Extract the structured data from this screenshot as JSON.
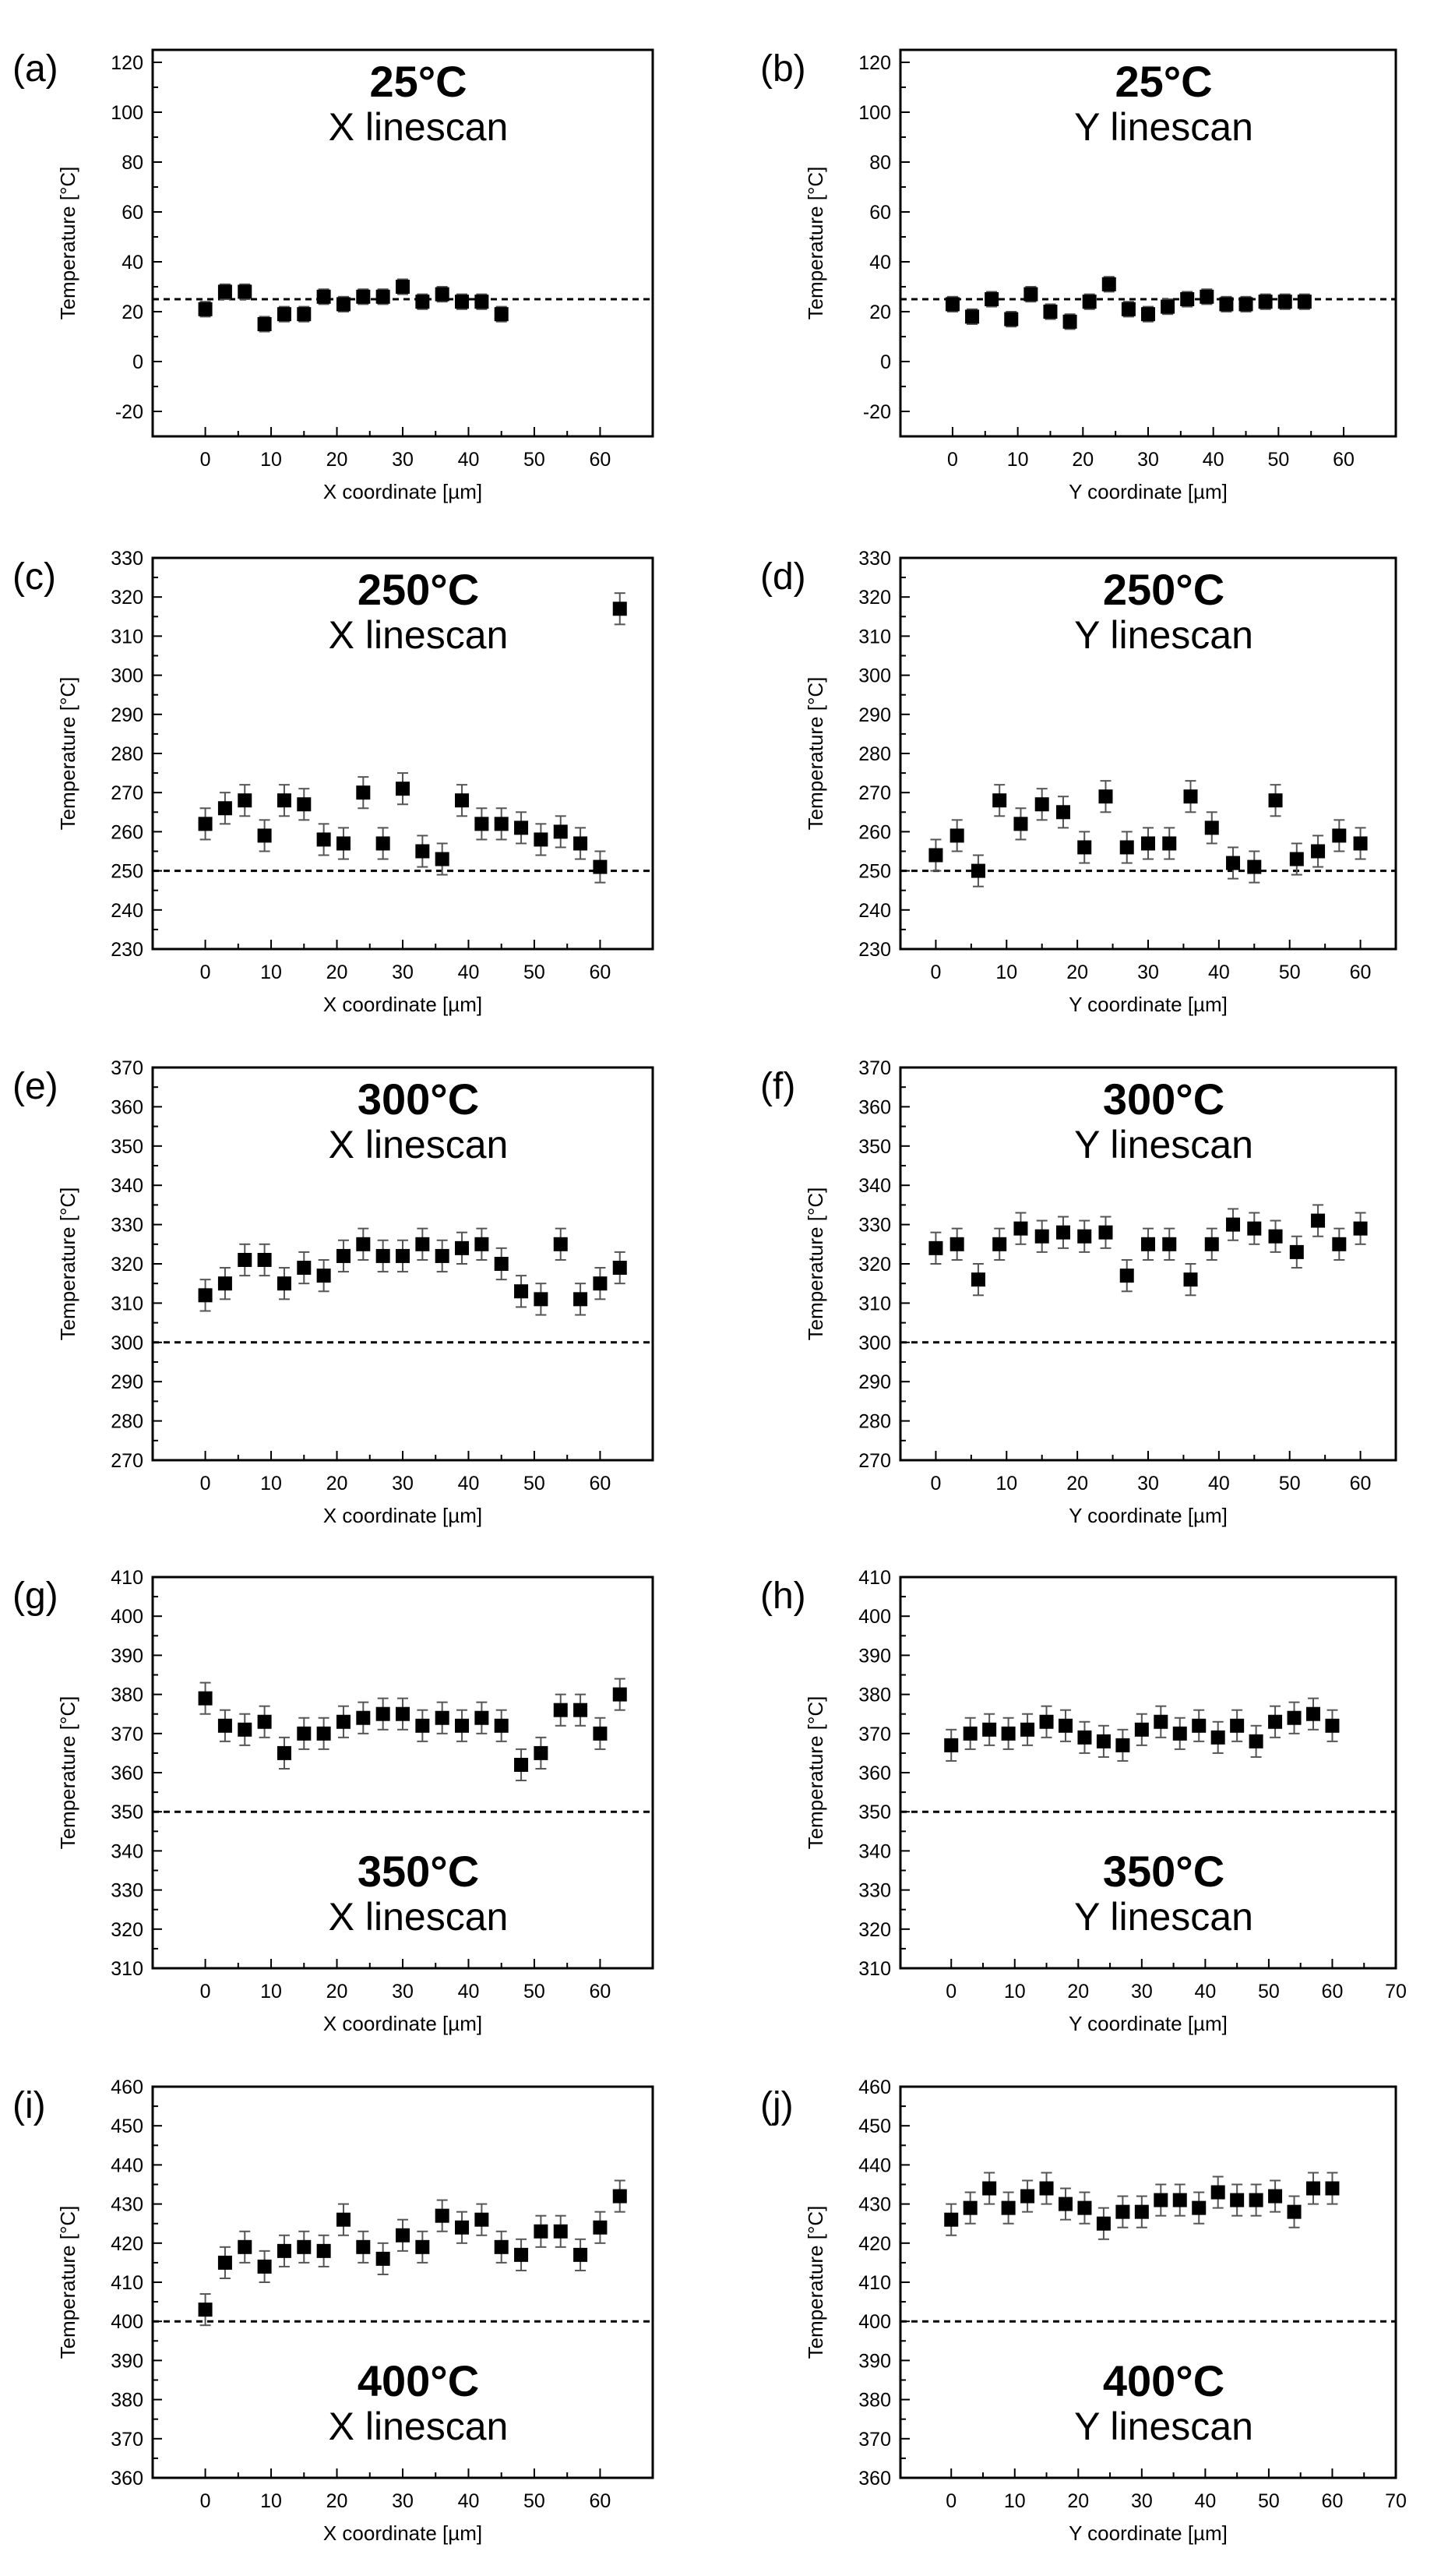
{
  "chart_data": [
    {
      "panel": "(a)",
      "type": "scatter",
      "title": "25°C",
      "subtitle": "X linescan",
      "xlabel": "X coordinate [µm]",
      "ylabel": "Temperature [°C]",
      "xlim": [
        -8,
        68
      ],
      "ylim": [
        -30,
        125
      ],
      "xticks": [
        0,
        10,
        20,
        30,
        40,
        50,
        60
      ],
      "yticks": [
        -20,
        0,
        20,
        40,
        60,
        80,
        100,
        120
      ],
      "reference": 25,
      "title_position": "top",
      "error": 3,
      "x": [
        0,
        3,
        6,
        9,
        12,
        15,
        18,
        21,
        24,
        27,
        30,
        33,
        36,
        39,
        42,
        45
      ],
      "y": [
        21,
        28,
        28,
        15,
        19,
        19,
        26,
        23,
        26,
        26,
        30,
        24,
        27,
        24,
        24,
        19
      ]
    },
    {
      "panel": "(b)",
      "type": "scatter",
      "title": "25°C",
      "subtitle": "Y linescan",
      "xlabel": "Y coordinate [µm]",
      "ylabel": "Temperature [°C]",
      "xlim": [
        -8,
        68
      ],
      "ylim": [
        -30,
        125
      ],
      "xticks": [
        0,
        10,
        20,
        30,
        40,
        50,
        60
      ],
      "yticks": [
        -20,
        0,
        20,
        40,
        60,
        80,
        100,
        120
      ],
      "reference": 25,
      "title_position": "top",
      "error": 3,
      "x": [
        0,
        3,
        6,
        9,
        12,
        15,
        18,
        21,
        24,
        27,
        30,
        33,
        36,
        39,
        42,
        45,
        48,
        51,
        54
      ],
      "y": [
        23,
        18,
        25,
        17,
        27,
        20,
        16,
        24,
        31,
        21,
        19,
        22,
        25,
        26,
        23,
        23,
        24,
        24,
        24
      ]
    },
    {
      "panel": "(c)",
      "type": "scatter",
      "title": "250°C",
      "subtitle": "X linescan",
      "xlabel": "X coordinate [µm]",
      "ylabel": "Temperature [°C]",
      "xlim": [
        -8,
        68
      ],
      "ylim": [
        230,
        330
      ],
      "xticks": [
        0,
        10,
        20,
        30,
        40,
        50,
        60
      ],
      "yticks": [
        230,
        240,
        250,
        260,
        270,
        280,
        290,
        300,
        310,
        320,
        330
      ],
      "reference": 250,
      "title_position": "top",
      "error": 4,
      "x": [
        0,
        3,
        6,
        9,
        12,
        15,
        18,
        21,
        24,
        27,
        30,
        33,
        36,
        39,
        42,
        45,
        48,
        51,
        54,
        57,
        60,
        63
      ],
      "y": [
        262,
        266,
        268,
        259,
        268,
        267,
        258,
        257,
        270,
        257,
        271,
        255,
        253,
        268,
        262,
        262,
        261,
        258,
        260,
        257,
        251,
        317
      ]
    },
    {
      "panel": "(d)",
      "type": "scatter",
      "title": "250°C",
      "subtitle": "Y linescan",
      "xlabel": "Y coordinate [µm]",
      "ylabel": "Temperature [°C]",
      "xlim": [
        -5,
        65
      ],
      "ylim": [
        230,
        330
      ],
      "xticks": [
        0,
        10,
        20,
        30,
        40,
        50,
        60
      ],
      "yticks": [
        230,
        240,
        250,
        260,
        270,
        280,
        290,
        300,
        310,
        320,
        330
      ],
      "reference": 250,
      "title_position": "top",
      "error": 4,
      "x": [
        0,
        3,
        6,
        9,
        12,
        15,
        18,
        21,
        24,
        27,
        30,
        33,
        36,
        39,
        42,
        45,
        48,
        51,
        54,
        57,
        60
      ],
      "y": [
        254,
        259,
        250,
        268,
        262,
        267,
        265,
        256,
        269,
        256,
        257,
        257,
        269,
        261,
        252,
        251,
        268,
        253,
        255,
        259,
        257
      ]
    },
    {
      "panel": "(e)",
      "type": "scatter",
      "title": "300°C",
      "subtitle": "X linescan",
      "xlabel": "X coordinate [µm]",
      "ylabel": "Temperature [°C]",
      "xlim": [
        -8,
        68
      ],
      "ylim": [
        270,
        370
      ],
      "xticks": [
        0,
        10,
        20,
        30,
        40,
        50,
        60
      ],
      "yticks": [
        270,
        280,
        290,
        300,
        310,
        320,
        330,
        340,
        350,
        360,
        370
      ],
      "reference": 300,
      "title_position": "top",
      "error": 4,
      "x": [
        0,
        3,
        6,
        9,
        12,
        15,
        18,
        21,
        24,
        27,
        30,
        33,
        36,
        39,
        42,
        45,
        48,
        51,
        54,
        57,
        60,
        63
      ],
      "y": [
        312,
        315,
        321,
        321,
        315,
        319,
        317,
        322,
        325,
        322,
        322,
        325,
        322,
        324,
        325,
        320,
        313,
        311,
        325,
        311,
        315,
        319
      ]
    },
    {
      "panel": "(f)",
      "type": "scatter",
      "title": "300°C",
      "subtitle": "Y linescan",
      "xlabel": "Y coordinate [µm]",
      "ylabel": "Temperature [°C]",
      "xlim": [
        -5,
        65
      ],
      "ylim": [
        270,
        370
      ],
      "xticks": [
        0,
        10,
        20,
        30,
        40,
        50,
        60
      ],
      "yticks": [
        270,
        280,
        290,
        300,
        310,
        320,
        330,
        340,
        350,
        360,
        370
      ],
      "reference": 300,
      "title_position": "top",
      "error": 4,
      "x": [
        0,
        3,
        6,
        9,
        12,
        15,
        18,
        21,
        24,
        27,
        30,
        33,
        36,
        39,
        42,
        45,
        48,
        51,
        54,
        57,
        60
      ],
      "y": [
        324,
        325,
        316,
        325,
        329,
        327,
        328,
        327,
        328,
        317,
        325,
        325,
        316,
        325,
        330,
        329,
        327,
        323,
        331,
        325,
        329
      ]
    },
    {
      "panel": "(g)",
      "type": "scatter",
      "title": "350°C",
      "subtitle": "X linescan",
      "xlabel": "X coordinate [µm]",
      "ylabel": "Temperature [°C]",
      "xlim": [
        -8,
        68
      ],
      "ylim": [
        310,
        410
      ],
      "xticks": [
        0,
        10,
        20,
        30,
        40,
        50,
        60
      ],
      "yticks": [
        310,
        320,
        330,
        340,
        350,
        360,
        370,
        380,
        390,
        400,
        410
      ],
      "reference": 350,
      "title_position": "bottom",
      "error": 4,
      "x": [
        0,
        3,
        6,
        9,
        12,
        15,
        18,
        21,
        24,
        27,
        30,
        33,
        36,
        39,
        42,
        45,
        48,
        51,
        54,
        57,
        60,
        63
      ],
      "y": [
        379,
        372,
        371,
        373,
        365,
        370,
        370,
        373,
        374,
        375,
        375,
        372,
        374,
        372,
        374,
        372,
        362,
        365,
        376,
        376,
        370,
        380
      ]
    },
    {
      "panel": "(h)",
      "type": "scatter",
      "title": "350°C",
      "subtitle": "Y linescan",
      "xlabel": "Y coordinate [µm]",
      "ylabel": "Temperature [°C]",
      "xlim": [
        -8,
        70
      ],
      "ylim": [
        310,
        410
      ],
      "xticks": [
        0,
        10,
        20,
        30,
        40,
        50,
        60,
        70
      ],
      "yticks": [
        310,
        320,
        330,
        340,
        350,
        360,
        370,
        380,
        390,
        400,
        410
      ],
      "reference": 350,
      "title_position": "bottom",
      "error": 4,
      "x": [
        0,
        3,
        6,
        9,
        12,
        15,
        18,
        21,
        24,
        27,
        30,
        33,
        36,
        39,
        42,
        45,
        48,
        51,
        54,
        57,
        60
      ],
      "y": [
        367,
        370,
        371,
        370,
        371,
        373,
        372,
        369,
        368,
        367,
        371,
        373,
        370,
        372,
        369,
        372,
        368,
        373,
        374,
        375,
        372
      ]
    },
    {
      "panel": "(i)",
      "type": "scatter",
      "title": "400°C",
      "subtitle": "X linescan",
      "xlabel": "X coordinate [µm]",
      "ylabel": "Temperature [°C]",
      "xlim": [
        -8,
        68
      ],
      "ylim": [
        360,
        460
      ],
      "xticks": [
        0,
        10,
        20,
        30,
        40,
        50,
        60
      ],
      "yticks": [
        360,
        370,
        380,
        390,
        400,
        410,
        420,
        430,
        440,
        450,
        460
      ],
      "reference": 400,
      "title_position": "bottom",
      "error": 4,
      "x": [
        0,
        3,
        6,
        9,
        12,
        15,
        18,
        21,
        24,
        27,
        30,
        33,
        36,
        39,
        42,
        45,
        48,
        51,
        54,
        57,
        60,
        63
      ],
      "y": [
        403,
        415,
        419,
        414,
        418,
        419,
        418,
        426,
        419,
        416,
        422,
        419,
        427,
        424,
        426,
        419,
        417,
        423,
        423,
        417,
        424,
        432
      ]
    },
    {
      "panel": "(j)",
      "type": "scatter",
      "title": "400°C",
      "subtitle": "Y linescan",
      "xlabel": "Y coordinate [µm]",
      "ylabel": "Temperature [°C]",
      "xlim": [
        -8,
        70
      ],
      "ylim": [
        360,
        460
      ],
      "xticks": [
        0,
        10,
        20,
        30,
        40,
        50,
        60,
        70
      ],
      "yticks": [
        360,
        370,
        380,
        390,
        400,
        410,
        420,
        430,
        440,
        450,
        460
      ],
      "reference": 400,
      "title_position": "bottom",
      "error": 4,
      "x": [
        0,
        3,
        6,
        9,
        12,
        15,
        18,
        21,
        24,
        27,
        30,
        33,
        36,
        39,
        42,
        45,
        48,
        51,
        54,
        57,
        60
      ],
      "y": [
        426,
        429,
        434,
        429,
        432,
        434,
        430,
        429,
        425,
        428,
        428,
        431,
        431,
        429,
        433,
        431,
        431,
        432,
        428,
        434,
        434
      ]
    }
  ]
}
